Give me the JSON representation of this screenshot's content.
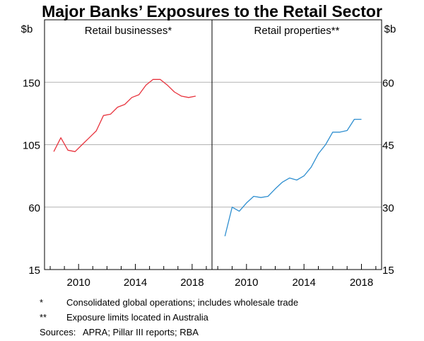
{
  "title": "Major Banks’ Exposures to the Retail Sector",
  "units": {
    "left": "$b",
    "right": "$b"
  },
  "footnotes": [
    {
      "mark": "*",
      "text": "Consolidated global operations; includes wholesale trade"
    },
    {
      "mark": "**",
      "text": "Exposure limits located in Australia"
    }
  ],
  "sources": {
    "label": "Sources:",
    "text": "APRA; Pillar III reports; RBA"
  },
  "colors": {
    "left_series": "#e8343e",
    "right_series": "#2f8fd0",
    "grid": "#b3b3b3",
    "axis": "#000000"
  },
  "chart_data": [
    {
      "type": "line",
      "panel_title": "Retail businesses*",
      "ylabel": "$b",
      "ylim": [
        15,
        195
      ],
      "yticks": [
        15,
        60,
        105,
        150
      ],
      "xlim": [
        2007.6,
        2019.4
      ],
      "xticks": [
        2010,
        2014,
        2018
      ],
      "grid": true,
      "series": [
        {
          "x": [
            2008.25,
            2008.75,
            2009.25,
            2009.75,
            2010.25,
            2010.75,
            2011.25,
            2011.75,
            2012.25,
            2012.75,
            2013.25,
            2013.75,
            2014.25,
            2014.75,
            2015.25,
            2015.75,
            2016.25,
            2016.75,
            2017.25,
            2017.75,
            2018.25
          ],
          "values": [
            100,
            110,
            101,
            100,
            105,
            110,
            115,
            126,
            127,
            132,
            134,
            139,
            141,
            148,
            152,
            152,
            148,
            143,
            140,
            139,
            140
          ]
        }
      ]
    },
    {
      "type": "line",
      "panel_title": "Retail properties**",
      "ylabel": "$b",
      "ylim": [
        15,
        75
      ],
      "yticks": [
        15,
        30,
        45,
        60
      ],
      "xlim": [
        2007.6,
        2019.4
      ],
      "xticks": [
        2010,
        2014,
        2018
      ],
      "grid": true,
      "series": [
        {
          "x": [
            2008.5,
            2009.0,
            2009.5,
            2010.0,
            2010.5,
            2011.0,
            2011.5,
            2012.0,
            2012.5,
            2013.0,
            2013.5,
            2014.0,
            2014.5,
            2015.0,
            2015.5,
            2016.0,
            2016.5,
            2017.0,
            2017.5,
            2018.0
          ],
          "values": [
            23,
            30,
            29,
            31,
            32.6,
            32.3,
            32.6,
            34.4,
            36,
            37,
            36.5,
            37.5,
            39.6,
            42.8,
            45,
            48,
            48,
            48.4,
            51.1,
            51.1
          ]
        }
      ]
    }
  ]
}
